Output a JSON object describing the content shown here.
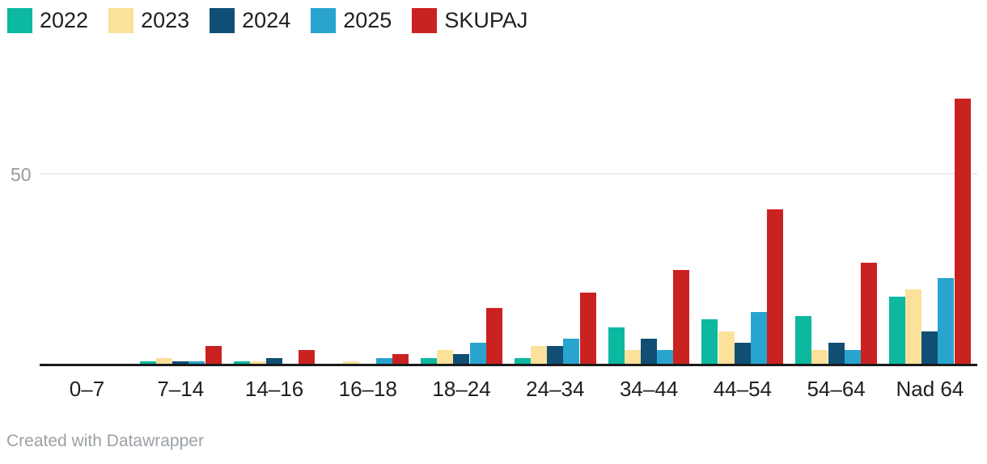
{
  "chart_data": {
    "type": "bar",
    "title": "",
    "xlabel": "",
    "ylabel": "",
    "categories": [
      "0–7",
      "7–14",
      "14–16",
      "16–18",
      "18–24",
      "24–34",
      "34–44",
      "44–54",
      "54–64",
      "Nad 64"
    ],
    "series": [
      {
        "name": "2022",
        "color": "#0DB8A1",
        "values": [
          0,
          1,
          1,
          0,
          2,
          2,
          10,
          12,
          13,
          18
        ]
      },
      {
        "name": "2023",
        "color": "#FBE19A",
        "values": [
          0,
          2,
          1,
          1,
          4,
          5,
          4,
          9,
          4,
          20
        ]
      },
      {
        "name": "2024",
        "color": "#114E74",
        "values": [
          0,
          1,
          2,
          0,
          3,
          5,
          7,
          6,
          6,
          9
        ]
      },
      {
        "name": "2025",
        "color": "#28A4CF",
        "values": [
          0,
          1,
          0,
          2,
          6,
          7,
          4,
          14,
          4,
          23
        ]
      },
      {
        "name": "SKUPAJ",
        "color": "#CA2221",
        "values": [
          0,
          5,
          4,
          3,
          15,
          19,
          25,
          41,
          27,
          70
        ]
      }
    ],
    "ylim": [
      0,
      80
    ],
    "yticks": [
      {
        "value": 50,
        "label": "50"
      }
    ],
    "grid": "single-horizontal-gridline-at-50",
    "legend_position": "top-left"
  },
  "footer": {
    "credit": "Created with Datawrapper"
  }
}
